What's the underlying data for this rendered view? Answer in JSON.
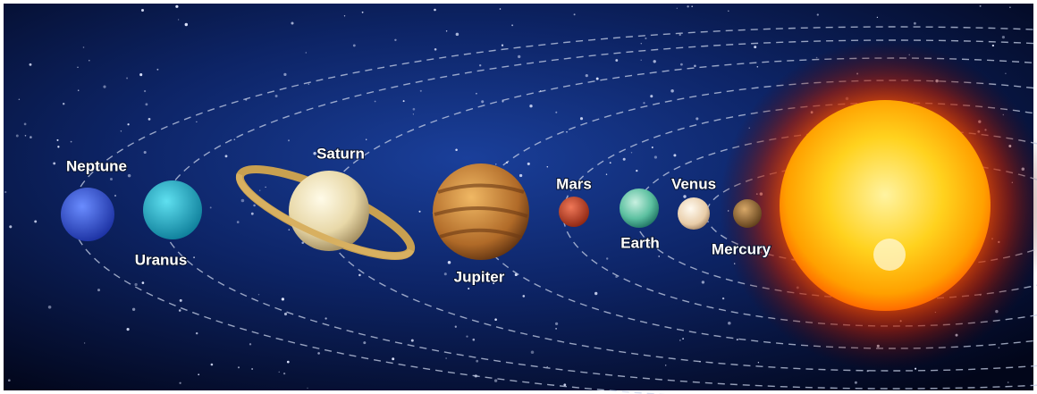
{
  "planets": [
    {
      "label": "Neptune"
    },
    {
      "label": "Uranus"
    },
    {
      "label": "Saturn"
    },
    {
      "label": "Jupiter"
    },
    {
      "label": "Mars"
    },
    {
      "label": "Earth"
    },
    {
      "label": "Venus"
    },
    {
      "label": "Mercury"
    }
  ]
}
